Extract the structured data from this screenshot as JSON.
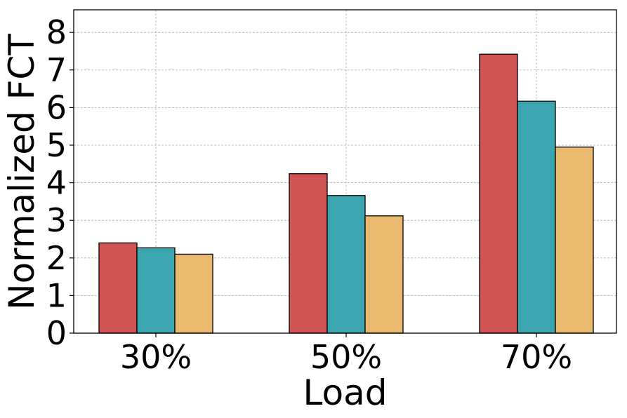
{
  "chart_data": {
    "type": "bar",
    "title": "",
    "xlabel": "Load",
    "ylabel": "Normalized FCT",
    "categories": [
      "30%",
      "50%",
      "70%"
    ],
    "series": [
      {
        "values": [
          2.4,
          4.24,
          7.42
        ],
        "color": "#d15454"
      },
      {
        "values": [
          2.27,
          3.66,
          6.17
        ],
        "color": "#3ba6b0"
      },
      {
        "values": [
          2.1,
          3.12,
          4.95
        ],
        "color": "#e9b96e"
      }
    ],
    "yticks": [
      0,
      1,
      2,
      3,
      4,
      5,
      6,
      7,
      8
    ],
    "ylim": [
      0,
      8.6
    ],
    "grid": true,
    "bar_edge_color": "#000000"
  }
}
